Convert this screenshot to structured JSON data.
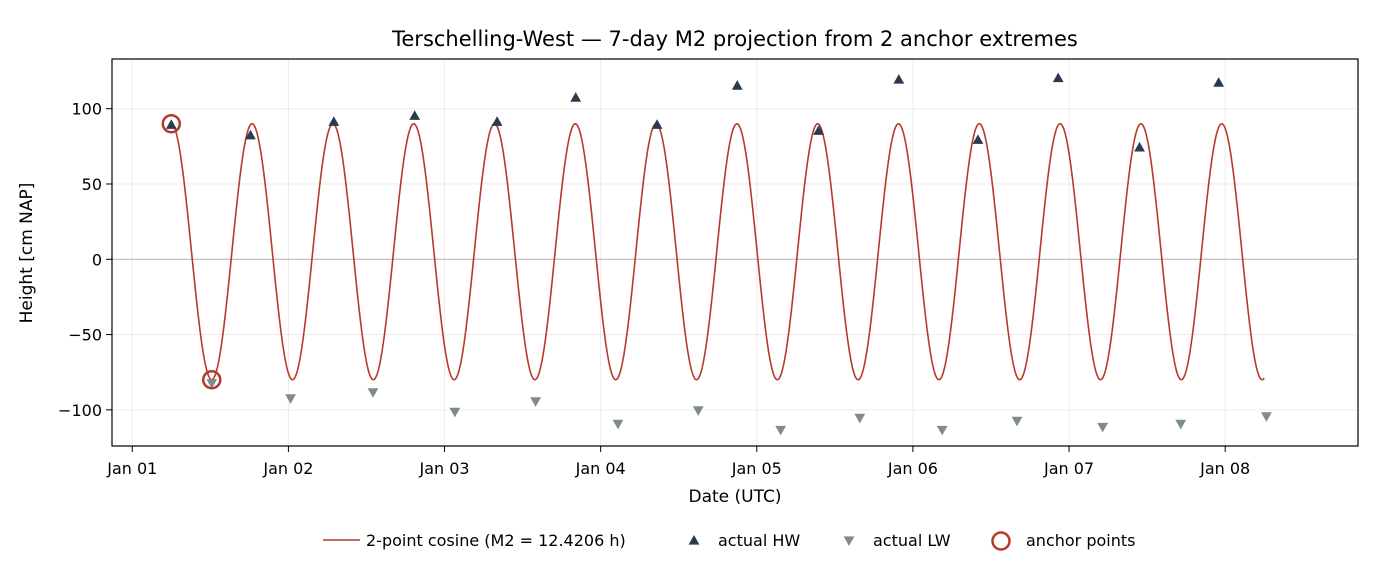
{
  "chart_data": {
    "type": "line",
    "title": "Terschelling-West — 7-day M2 projection from 2 anchor extremes",
    "xlabel": "Date (UTC)",
    "ylabel": "Height [cm NAP]",
    "xlim": [
      "2024-12-31T20:53",
      "2025-01-08T20:25"
    ],
    "ylim": [
      -124,
      133
    ],
    "x_ticks": [
      {
        "t": "2025-01-01T00:00",
        "label": "Jan 01"
      },
      {
        "t": "2025-01-02T00:00",
        "label": "Jan 02"
      },
      {
        "t": "2025-01-03T00:00",
        "label": "Jan 03"
      },
      {
        "t": "2025-01-04T00:00",
        "label": "Jan 04"
      },
      {
        "t": "2025-01-05T00:00",
        "label": "Jan 05"
      },
      {
        "t": "2025-01-06T00:00",
        "label": "Jan 06"
      },
      {
        "t": "2025-01-07T00:00",
        "label": "Jan 07"
      },
      {
        "t": "2025-01-08T00:00",
        "label": "Jan 08"
      }
    ],
    "y_ticks": [
      {
        "v": 100,
        "label": "100"
      },
      {
        "v": 50,
        "label": "50"
      },
      {
        "v": 0,
        "label": "0"
      },
      {
        "v": -50,
        "label": "−50"
      },
      {
        "v": -100,
        "label": "−100"
      }
    ],
    "grid": true,
    "legend_position": "bottom",
    "series": [
      {
        "name": "2-point cosine (M2 = 12.4206 h)",
        "kind": "cosine",
        "color": "#b63a2b",
        "anchor_high": {
          "t": "2025-01-01T06:00",
          "y": 90
        },
        "anchor_low": {
          "t": "2025-01-01T12:13",
          "y": -80
        },
        "period_hours": 12.4206,
        "x_start": "2025-01-01T06:00",
        "x_end": "2025-01-08T06:00"
      },
      {
        "name": "actual HW",
        "kind": "scatter",
        "marker": "triangle-up",
        "color": "#2b3a4e",
        "points": [
          {
            "t": "2025-01-01T06:00",
            "y": 89
          },
          {
            "t": "2025-01-01T18:10",
            "y": 82
          },
          {
            "t": "2025-01-02T06:59",
            "y": 91
          },
          {
            "t": "2025-01-02T19:25",
            "y": 95
          },
          {
            "t": "2025-01-03T08:05",
            "y": 91
          },
          {
            "t": "2025-01-03T20:10",
            "y": 107
          },
          {
            "t": "2025-01-04T08:40",
            "y": 89
          },
          {
            "t": "2025-01-04T21:00",
            "y": 115
          },
          {
            "t": "2025-01-05T09:30",
            "y": 85
          },
          {
            "t": "2025-01-05T21:50",
            "y": 119
          },
          {
            "t": "2025-01-06T10:00",
            "y": 79
          },
          {
            "t": "2025-01-06T22:20",
            "y": 120
          },
          {
            "t": "2025-01-07T10:50",
            "y": 74
          },
          {
            "t": "2025-01-07T23:00",
            "y": 117
          }
        ]
      },
      {
        "name": "actual LW",
        "kind": "scatter",
        "marker": "triangle-down",
        "color": "#7f8c8d",
        "points": [
          {
            "t": "2025-01-01T12:13",
            "y": -82
          },
          {
            "t": "2025-01-02T00:20",
            "y": -92
          },
          {
            "t": "2025-01-02T13:00",
            "y": -88
          },
          {
            "t": "2025-01-03T01:35",
            "y": -101
          },
          {
            "t": "2025-01-03T14:00",
            "y": -94
          },
          {
            "t": "2025-01-04T02:40",
            "y": -109
          },
          {
            "t": "2025-01-04T15:00",
            "y": -100
          },
          {
            "t": "2025-01-05T03:40",
            "y": -113
          },
          {
            "t": "2025-01-05T15:50",
            "y": -105
          },
          {
            "t": "2025-01-06T04:30",
            "y": -113
          },
          {
            "t": "2025-01-06T16:00",
            "y": -107
          },
          {
            "t": "2025-01-07T05:10",
            "y": -111
          },
          {
            "t": "2025-01-07T17:10",
            "y": -109
          },
          {
            "t": "2025-01-08T06:20",
            "y": -104
          }
        ]
      },
      {
        "name": "anchor points",
        "kind": "scatter",
        "marker": "circle-open",
        "color": "#b63a2b",
        "points": [
          {
            "t": "2025-01-01T06:00",
            "y": 90
          },
          {
            "t": "2025-01-01T12:13",
            "y": -80
          }
        ]
      }
    ]
  }
}
